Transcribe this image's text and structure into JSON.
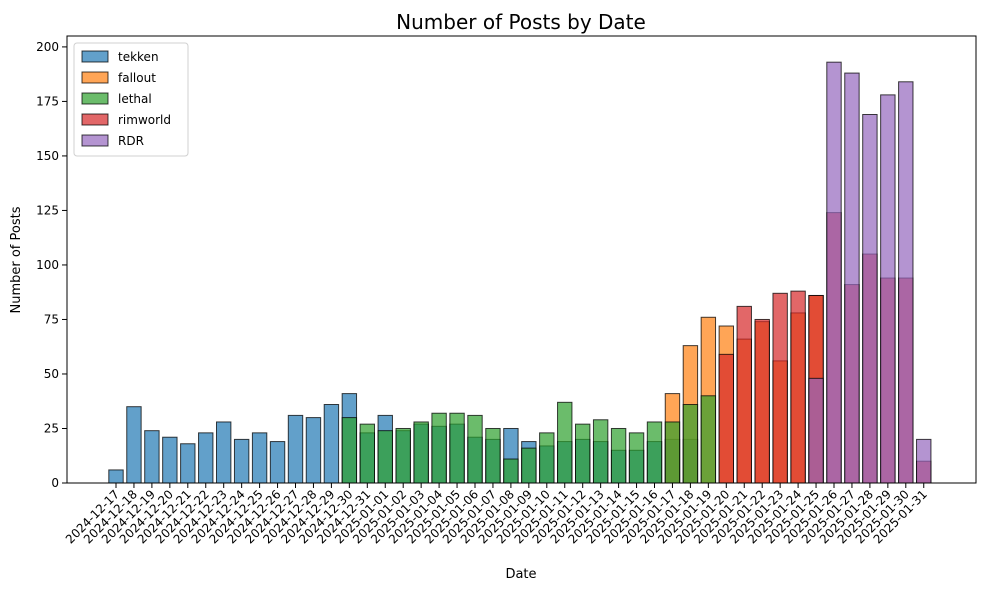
{
  "chart_data": {
    "type": "bar",
    "title": "Number of Posts by Date",
    "xlabel": "Date",
    "ylabel": "Number of Posts",
    "ylim": [
      0,
      205
    ],
    "yticks": [
      0,
      25,
      50,
      75,
      100,
      125,
      150,
      175,
      200
    ],
    "grid": false,
    "legend_position": "top-left",
    "categories": [
      "2024-12-17",
      "2024-12-18",
      "2024-12-19",
      "2024-12-20",
      "2024-12-21",
      "2024-12-22",
      "2024-12-23",
      "2024-12-24",
      "2024-12-25",
      "2024-12-26",
      "2024-12-27",
      "2024-12-28",
      "2024-12-29",
      "2024-12-30",
      "2024-12-31",
      "2025-01-01",
      "2025-01-02",
      "2025-01-03",
      "2025-01-04",
      "2025-01-05",
      "2025-01-06",
      "2025-01-07",
      "2025-01-08",
      "2025-01-09",
      "2025-01-10",
      "2025-01-11",
      "2025-01-12",
      "2025-01-13",
      "2025-01-14",
      "2025-01-15",
      "2025-01-16",
      "2025-01-17",
      "2025-01-18",
      "2025-01-19",
      "2025-01-20",
      "2025-01-21",
      "2025-01-22",
      "2025-01-23",
      "2025-01-24",
      "2025-01-25",
      "2025-01-26",
      "2025-01-27",
      "2025-01-28",
      "2025-01-29",
      "2025-01-30",
      "2025-01-31"
    ],
    "series": [
      {
        "name": "tekken",
        "color": "#1f77b4",
        "values": [
          6,
          35,
          24,
          21,
          18,
          23,
          28,
          20,
          23,
          19,
          31,
          30,
          36,
          41,
          23,
          31,
          24,
          27,
          26,
          27,
          21,
          20,
          25,
          19,
          17,
          19,
          20,
          19,
          15,
          15,
          19,
          20,
          20,
          0,
          0,
          0,
          0,
          0,
          0,
          0,
          0,
          0,
          0,
          0,
          0,
          0
        ]
      },
      {
        "name": "fallout",
        "color": "#ff7f0e",
        "values": [
          0,
          0,
          0,
          0,
          0,
          0,
          0,
          0,
          0,
          0,
          0,
          0,
          0,
          0,
          0,
          0,
          0,
          0,
          0,
          0,
          0,
          0,
          0,
          0,
          0,
          0,
          0,
          0,
          0,
          0,
          0,
          41,
          63,
          76,
          72,
          66,
          74,
          56,
          78,
          86,
          0,
          0,
          0,
          0,
          0,
          0
        ]
      },
      {
        "name": "lethal",
        "color": "#2ca02c",
        "values": [
          0,
          0,
          0,
          0,
          0,
          0,
          0,
          0,
          0,
          0,
          0,
          0,
          0,
          30,
          27,
          24,
          25,
          28,
          32,
          32,
          31,
          25,
          11,
          16,
          23,
          37,
          27,
          29,
          25,
          23,
          28,
          28,
          36,
          40,
          0,
          0,
          0,
          0,
          0,
          0,
          0,
          0,
          0,
          0,
          0,
          0
        ]
      },
      {
        "name": "rimworld",
        "color": "#d62728",
        "values": [
          0,
          0,
          0,
          0,
          0,
          0,
          0,
          0,
          0,
          0,
          0,
          0,
          0,
          0,
          0,
          0,
          0,
          0,
          0,
          0,
          0,
          0,
          0,
          0,
          0,
          0,
          0,
          0,
          0,
          0,
          0,
          0,
          0,
          0,
          59,
          81,
          75,
          87,
          88,
          86,
          124,
          91,
          105,
          94,
          94,
          10
        ]
      },
      {
        "name": "RDR",
        "color": "#9467bd",
        "values": [
          0,
          0,
          0,
          0,
          0,
          0,
          0,
          0,
          0,
          0,
          0,
          0,
          0,
          0,
          0,
          0,
          0,
          0,
          0,
          0,
          0,
          0,
          0,
          0,
          0,
          0,
          0,
          0,
          0,
          0,
          0,
          0,
          0,
          0,
          0,
          0,
          0,
          0,
          0,
          48,
          193,
          188,
          169,
          178,
          184,
          20
        ]
      }
    ]
  }
}
